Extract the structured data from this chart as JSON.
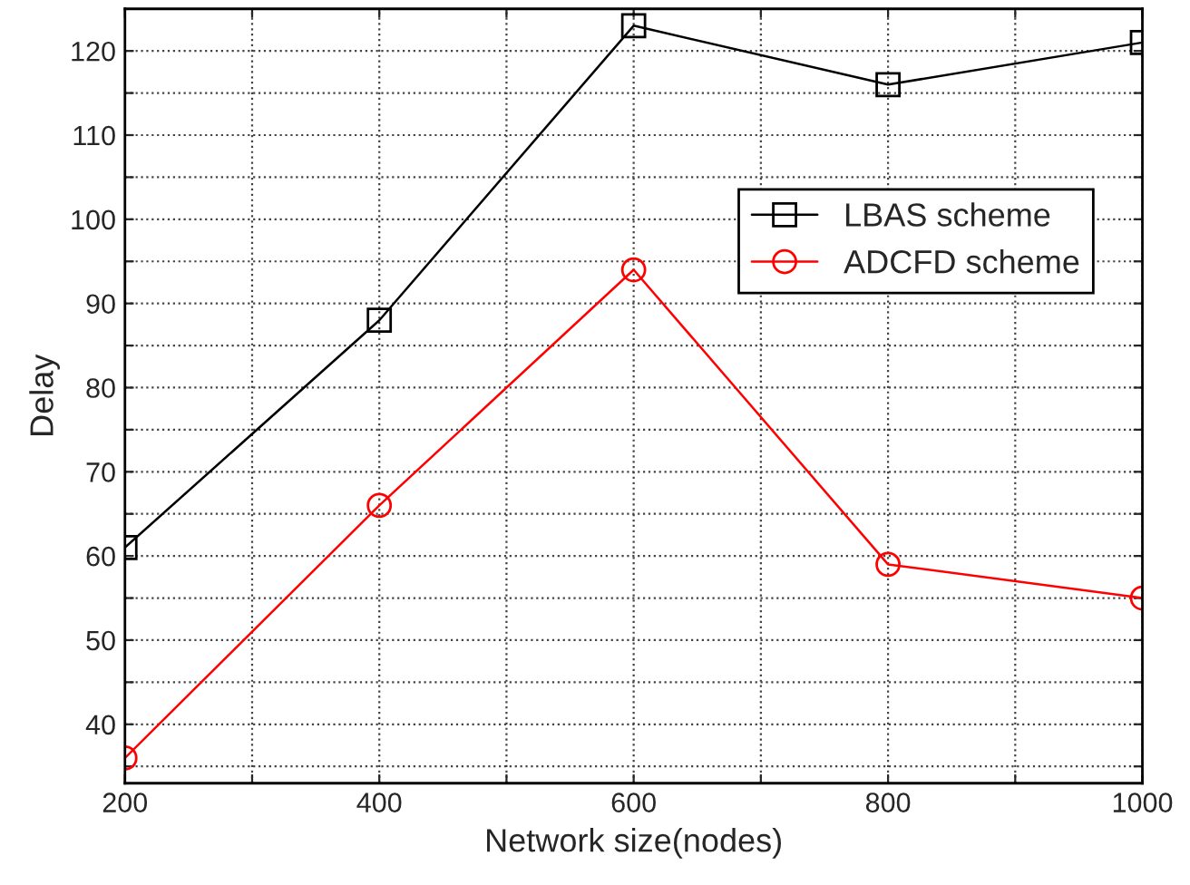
{
  "chart_data": {
    "type": "line",
    "xlabel": "Network size(nodes)",
    "ylabel": "Delay",
    "x": [
      200,
      400,
      600,
      800,
      1000
    ],
    "series": [
      {
        "name": "LBAS scheme",
        "color": "#000000",
        "marker": "square",
        "values": [
          61,
          88,
          123,
          116,
          121
        ]
      },
      {
        "name": "ADCFD scheme",
        "color": "#ff0000",
        "marker": "circle",
        "values": [
          36,
          66,
          94,
          59,
          55
        ]
      }
    ],
    "xlim": [
      200,
      1000
    ],
    "xticks": [
      200,
      {
        "value": 300,
        "label": null
      },
      400,
      {
        "value": 500,
        "label": null
      },
      600,
      {
        "value": 700,
        "label": null
      },
      800,
      {
        "value": 900,
        "label": null
      },
      1000
    ],
    "ylim": [
      33,
      125
    ],
    "yticks": [
      {
        "value": 35,
        "label": null
      },
      40,
      {
        "value": 45,
        "label": null
      },
      50,
      {
        "value": 55,
        "label": null
      },
      60,
      {
        "value": 65,
        "label": null
      },
      70,
      {
        "value": 75,
        "label": null
      },
      80,
      {
        "value": 85,
        "label": null
      },
      90,
      {
        "value": 95,
        "label": null
      },
      100,
      {
        "value": 105,
        "label": null
      },
      110,
      {
        "value": 115,
        "label": null
      },
      120
    ],
    "grid": true,
    "legend": "right",
    "line_style": "solid"
  }
}
